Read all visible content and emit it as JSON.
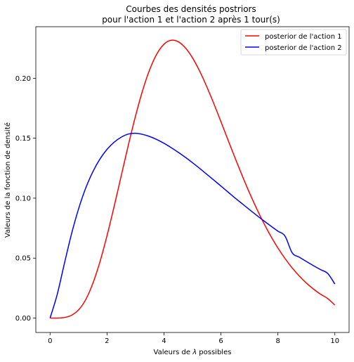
{
  "chart_data": {
    "type": "line",
    "title": "Courbes des densités postriors",
    "subtitle": "pour l'action 1 et l'action 2 après 1 tour(s)",
    "xlabel_prefix": "Valeurs de ",
    "xlabel_symbol": "λ",
    "xlabel_suffix": " possibles",
    "ylabel": "Valeurs de la fonction de densité",
    "xlim": [
      -0.5,
      10.5
    ],
    "ylim": [
      -0.012,
      0.243
    ],
    "xticks": [
      0,
      2,
      4,
      6,
      8,
      10
    ],
    "xtick_labels": [
      "0",
      "2",
      "4",
      "6",
      "8",
      "10"
    ],
    "yticks": [
      0.0,
      0.05,
      0.1,
      0.15,
      0.2
    ],
    "ytick_labels": [
      "0.00",
      "0.05",
      "0.10",
      "0.15",
      "0.20"
    ],
    "grid": false,
    "legend_position": "top-right",
    "x": [
      0,
      0.25,
      0.5,
      0.75,
      1,
      1.25,
      1.5,
      1.75,
      2,
      2.25,
      2.5,
      2.75,
      3,
      3.25,
      3.5,
      3.75,
      4,
      4.25,
      4.5,
      4.75,
      5,
      5.25,
      5.5,
      5.75,
      6,
      6.25,
      6.5,
      6.75,
      7,
      7.25,
      7.5,
      7.75,
      8,
      8.25,
      8.5,
      8.75,
      9,
      9.25,
      9.5,
      9.75,
      10
    ],
    "series": [
      {
        "name": "posterior de l'action 1",
        "color": "#ff0000",
        "values": [
          0,
          5e-05,
          0.0005,
          0.0023,
          0.0068,
          0.0153,
          0.0288,
          0.0468,
          0.0687,
          0.0931,
          0.1188,
          0.1444,
          0.1684,
          0.1898,
          0.2073,
          0.2203,
          0.2284,
          0.2317,
          0.2305,
          0.2254,
          0.2171,
          0.2061,
          0.1931,
          0.1789,
          0.1638,
          0.1485,
          0.1333,
          0.1186,
          0.1046,
          0.0915,
          0.0794,
          0.0684,
          0.0585,
          0.0497,
          0.0419,
          0.0351,
          0.0292,
          0.0242,
          0.0199,
          0.0163,
          0.0108
        ]
      },
      {
        "name": "posterior de l'action 2",
        "color": "#0000ff",
        "values": [
          0,
          0.0196,
          0.0452,
          0.0699,
          0.091,
          0.1083,
          0.1219,
          0.1326,
          0.1407,
          0.1467,
          0.1509,
          0.1535,
          0.1541,
          0.1532,
          0.1514,
          0.1489,
          0.1458,
          0.1422,
          0.1383,
          0.1341,
          0.1296,
          0.1249,
          0.12,
          0.1151,
          0.1101,
          0.1051,
          0.1001,
          0.0953,
          0.0905,
          0.0858,
          0.0812,
          0.0768,
          0.0725,
          0.0684,
          0.0545,
          0.0508,
          0.0472,
          0.0437,
          0.0404,
          0.0372,
          0.0284
        ]
      }
    ]
  }
}
